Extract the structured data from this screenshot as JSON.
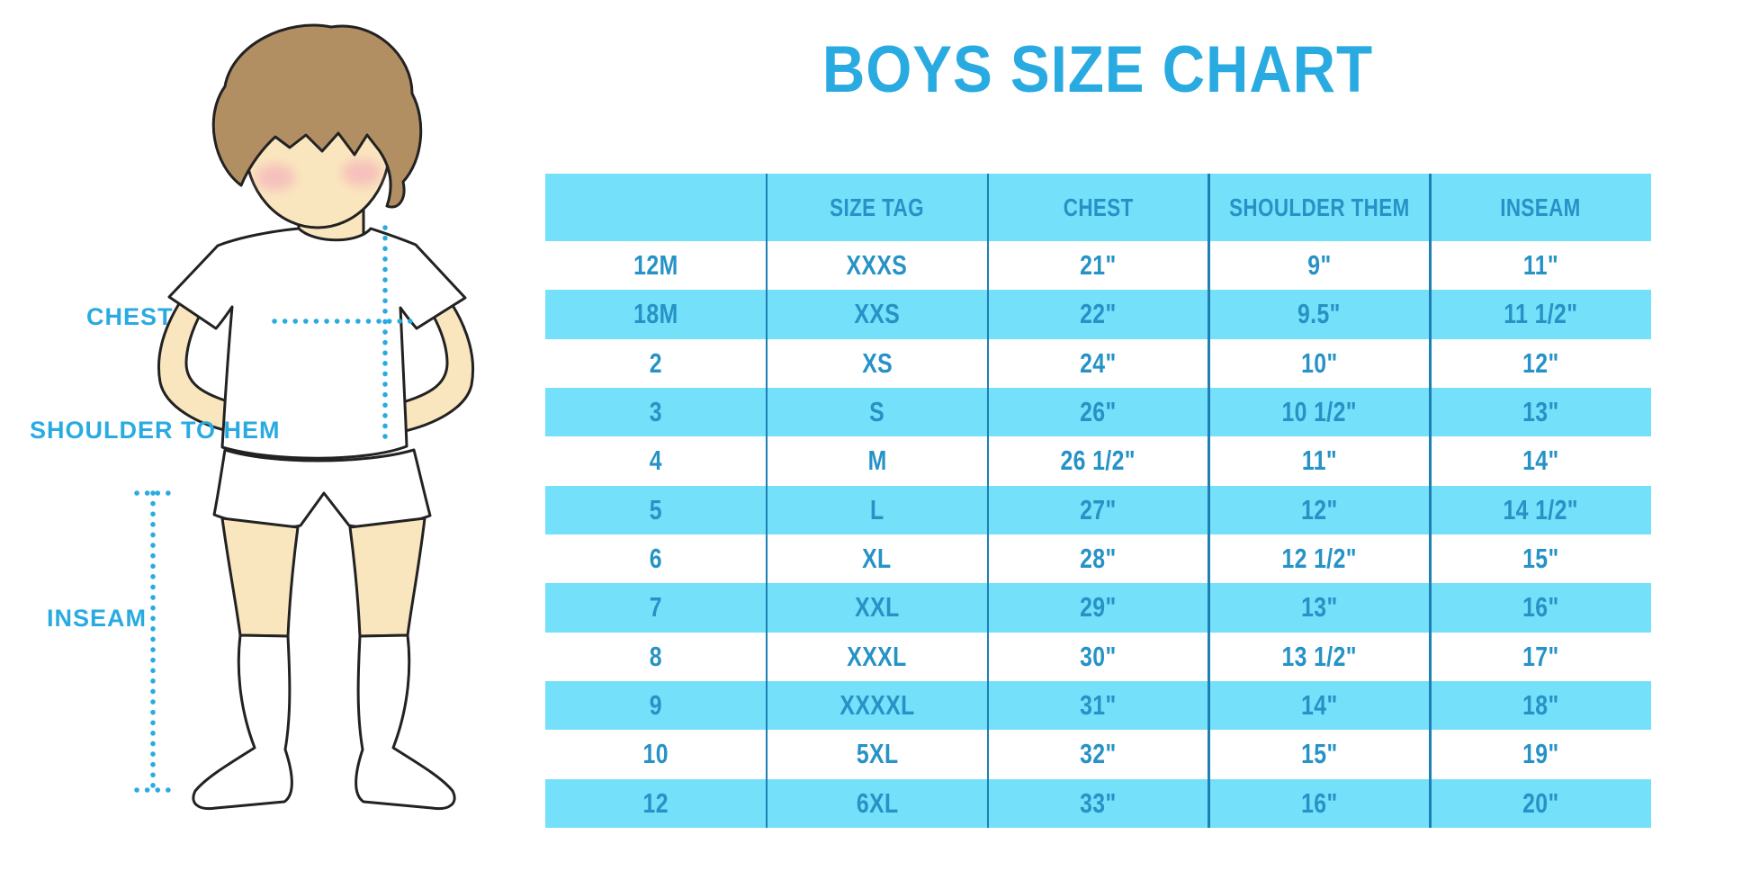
{
  "title": "BOYS SIZE CHART",
  "figure_labels": {
    "chest": "CHEST",
    "shoulder_to_hem": "SHOULDER TO HEM",
    "inseam": "INSEAM"
  },
  "colors": {
    "accent": "#29ABE2",
    "table_cyan": "#75E0FA",
    "table_text": "#2692C6",
    "divider": "#1E7FB2",
    "skin": "#FAE6BE",
    "hair": "#B28F63",
    "blush": "#F2A3BA",
    "outline": "#222222"
  },
  "chart_data": {
    "type": "table",
    "title": "BOYS SIZE CHART",
    "columns": [
      "",
      "SIZE TAG",
      "CHEST",
      "SHOULDER THEM",
      "INSEAM"
    ],
    "rows": [
      [
        "12M",
        "XXXS",
        "21\"",
        "9\"",
        "11\""
      ],
      [
        "18M",
        "XXS",
        "22\"",
        "9.5\"",
        "11 1/2\""
      ],
      [
        "2",
        "XS",
        "24\"",
        "10\"",
        "12\""
      ],
      [
        "3",
        "S",
        "26\"",
        "10 1/2\"",
        "13\""
      ],
      [
        "4",
        "M",
        "26 1/2\"",
        "11\"",
        "14\""
      ],
      [
        "5",
        "L",
        "27\"",
        "12\"",
        "14 1/2\""
      ],
      [
        "6",
        "XL",
        "28\"",
        "12 1/2\"",
        "15\""
      ],
      [
        "7",
        "XXL",
        "29\"",
        "13\"",
        "16\""
      ],
      [
        "8",
        "XXXL",
        "30\"",
        "13 1/2\"",
        "17\""
      ],
      [
        "9",
        "XXXXL",
        "31\"",
        "14\"",
        "18\""
      ],
      [
        "10",
        "5XL",
        "32\"",
        "15\"",
        "19\""
      ],
      [
        "12",
        "6XL",
        "33\"",
        "16\"",
        "20\""
      ]
    ],
    "stripe_pattern": "header cyan, then rows alternate white/cyan starting white",
    "grid": "vertical column dividers only, no outer border"
  }
}
